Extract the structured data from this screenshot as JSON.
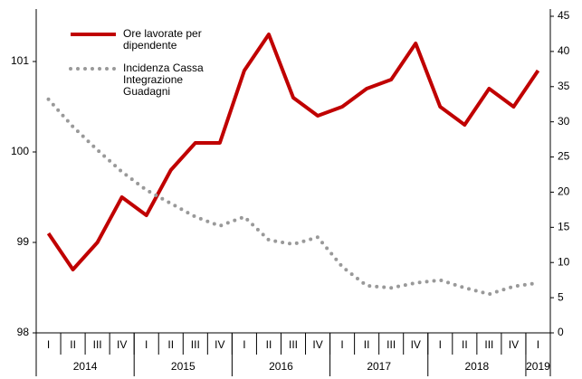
{
  "chart_data": {
    "type": "line",
    "categories": [
      "I",
      "II",
      "III",
      "IV",
      "I",
      "II",
      "III",
      "IV",
      "I",
      "II",
      "III",
      "IV",
      "I",
      "II",
      "III",
      "IV",
      "I",
      "II",
      "III",
      "IV",
      "I"
    ],
    "x_groups": [
      "2014",
      "2015",
      "2016",
      "2017",
      "2018",
      "2019"
    ],
    "series": [
      {
        "name": "Ore lavorate per dipendente",
        "color": "#c00000",
        "style": "solid",
        "values": [
          99.1,
          98.7,
          99.0,
          99.5,
          99.3,
          99.8,
          100.1,
          100.1,
          100.9,
          101.3,
          100.6,
          100.4,
          100.5,
          100.7,
          100.8,
          101.2,
          100.5,
          100.3,
          100.7,
          100.5,
          100.9
        ]
      },
      {
        "name": "Incidenza Cassa Integrazione Guadagni",
        "color": "#999999",
        "style": "dotted",
        "axis": "y2",
        "values": [
          33.2,
          29.3,
          26.0,
          22.9,
          20.3,
          18.4,
          16.5,
          15.2,
          16.5,
          13.2,
          12.6,
          13.6,
          9.4,
          6.7,
          6.4,
          7.1,
          7.5,
          6.4,
          5.5,
          6.6,
          7.1
        ]
      }
    ],
    "ylim": [
      98,
      101.5
    ],
    "yticks": [
      98,
      99,
      100,
      101
    ],
    "y2lim": [
      0,
      45
    ],
    "y2ticks": [
      0,
      5,
      10,
      15,
      20,
      25,
      30,
      35,
      40,
      45
    ],
    "legend": "top-left"
  }
}
